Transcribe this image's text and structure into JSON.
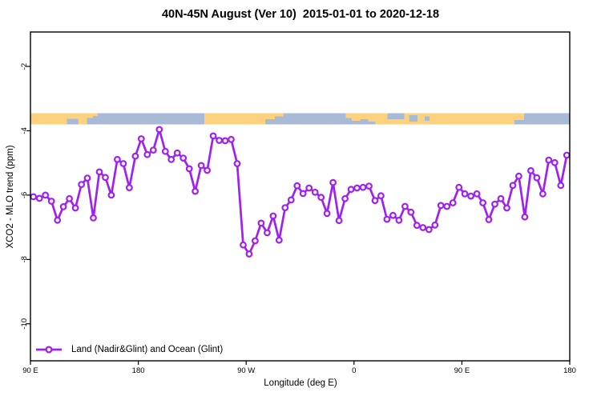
{
  "title": "40N-45N August (Ver 10)  2015-01-01 to 2020-12-18",
  "legend": {
    "label": "Land (Nadir&Glint) and Ocean (Glint)"
  },
  "colors": {
    "series": "#A020F0",
    "land": "#FCD27F",
    "ocean": "#A9BAD7",
    "axis": "#000000"
  },
  "chart_data": {
    "type": "line",
    "title": "40N-45N August (Ver 10)  2015-01-01 to 2020-12-18",
    "xlabel": "Longitude (deg E)",
    "ylabel": "XCO2 - MLO trend (ppm)",
    "xlim": [
      90,
      540
    ],
    "ylim": [
      -11.15,
      -0.93
    ],
    "grid": false,
    "legend_position": "bottom-left",
    "x_ticks": [
      {
        "value": 90,
        "label": "90 E"
      },
      {
        "value": 180,
        "label": "180"
      },
      {
        "value": 270,
        "label": "90 W"
      },
      {
        "value": 360,
        "label": "0"
      },
      {
        "value": 450,
        "label": "90 E"
      },
      {
        "value": 540,
        "label": "180"
      }
    ],
    "y_ticks": [
      {
        "value": -2,
        "label": "-2"
      },
      {
        "value": -4,
        "label": "-4"
      },
      {
        "value": -6,
        "label": "-6"
      },
      {
        "value": -8,
        "label": "-8"
      },
      {
        "value": -10,
        "label": "-10"
      }
    ],
    "series": [
      {
        "name": "Land (Nadir&Glint) and Ocean (Glint)",
        "color": "#A020F0",
        "marker": "open-circle",
        "points": [
          [
            92.5,
            -6.05
          ],
          [
            97.5,
            -6.1
          ],
          [
            102.5,
            -6.0
          ],
          [
            107.5,
            -6.19
          ],
          [
            112.5,
            -6.78
          ],
          [
            117.5,
            -6.36
          ],
          [
            122.5,
            -6.11
          ],
          [
            127.5,
            -6.4
          ],
          [
            132.5,
            -5.67
          ],
          [
            137.5,
            -5.47
          ],
          [
            142.5,
            -6.71
          ],
          [
            147.5,
            -5.28
          ],
          [
            152.5,
            -5.45
          ],
          [
            157.5,
            -6.0
          ],
          [
            162.5,
            -4.89
          ],
          [
            167.5,
            -5.02
          ],
          [
            172.5,
            -5.77
          ],
          [
            177.5,
            -4.79
          ],
          [
            182.5,
            -4.25
          ],
          [
            187.5,
            -4.74
          ],
          [
            192.5,
            -4.6
          ],
          [
            197.5,
            -3.96
          ],
          [
            202.5,
            -4.64
          ],
          [
            207.5,
            -4.89
          ],
          [
            212.5,
            -4.69
          ],
          [
            217.5,
            -4.85
          ],
          [
            222.5,
            -5.18
          ],
          [
            227.5,
            -5.88
          ],
          [
            232.5,
            -5.08
          ],
          [
            237.5,
            -5.23
          ],
          [
            242.5,
            -4.16
          ],
          [
            247.5,
            -4.3
          ],
          [
            252.5,
            -4.31
          ],
          [
            257.5,
            -4.27
          ],
          [
            262.5,
            -5.02
          ],
          [
            267.5,
            -7.55
          ],
          [
            272.5,
            -7.83
          ],
          [
            277.5,
            -7.42
          ],
          [
            282.5,
            -6.87
          ],
          [
            287.5,
            -7.17
          ],
          [
            292.5,
            -6.65
          ],
          [
            297.5,
            -7.4
          ],
          [
            302.5,
            -6.39
          ],
          [
            307.5,
            -6.15
          ],
          [
            312.5,
            -5.71
          ],
          [
            317.5,
            -5.95
          ],
          [
            322.5,
            -5.78
          ],
          [
            327.5,
            -5.91
          ],
          [
            332.5,
            -6.07
          ],
          [
            337.5,
            -6.57
          ],
          [
            342.5,
            -5.61
          ],
          [
            347.5,
            -6.79
          ],
          [
            352.5,
            -6.11
          ],
          [
            357.5,
            -5.82
          ],
          [
            362.5,
            -5.78
          ],
          [
            367.5,
            -5.76
          ],
          [
            372.5,
            -5.72
          ],
          [
            377.5,
            -6.17
          ],
          [
            382.5,
            -6.02
          ],
          [
            387.5,
            -6.75
          ],
          [
            392.5,
            -6.63
          ],
          [
            397.5,
            -6.78
          ],
          [
            402.5,
            -6.35
          ],
          [
            407.5,
            -6.53
          ],
          [
            412.5,
            -6.94
          ],
          [
            417.5,
            -7.01
          ],
          [
            422.5,
            -7.07
          ],
          [
            427.5,
            -6.93
          ],
          [
            432.5,
            -6.32
          ],
          [
            437.5,
            -6.35
          ],
          [
            442.5,
            -6.24
          ],
          [
            447.5,
            -5.76
          ],
          [
            452.5,
            -5.96
          ],
          [
            457.5,
            -6.03
          ],
          [
            462.5,
            -5.96
          ],
          [
            467.5,
            -6.24
          ],
          [
            472.5,
            -6.76
          ],
          [
            477.5,
            -6.28
          ],
          [
            482.5,
            -6.11
          ],
          [
            487.5,
            -6.4
          ],
          [
            492.5,
            -5.7
          ],
          [
            497.5,
            -5.41
          ],
          [
            502.5,
            -6.68
          ],
          [
            507.5,
            -5.24
          ],
          [
            512.5,
            -5.46
          ],
          [
            517.5,
            -5.96
          ],
          [
            522.5,
            -4.91
          ],
          [
            527.5,
            -4.99
          ],
          [
            532.5,
            -5.7
          ],
          [
            537.5,
            -4.76
          ]
        ]
      }
    ],
    "land_ocean_band": {
      "description": "land/ocean mask strip along 40N-45N; top of strip = 45N, bottom = 40N",
      "y_range": [
        -3.45,
        -3.8
      ],
      "land_color": "#FCD27F",
      "ocean_color": "#A9BAD7",
      "segments": [
        {
          "from": 90,
          "to": 120.5,
          "layers": [
            {
              "c": "land",
              "f": 1
            }
          ]
        },
        {
          "from": 120.5,
          "to": 130,
          "layers": [
            {
              "c": "land",
              "f": 0.5
            },
            {
              "c": "ocean",
              "f": 0.5
            }
          ]
        },
        {
          "from": 130,
          "to": 137,
          "layers": [
            {
              "c": "land",
              "f": 1
            }
          ]
        },
        {
          "from": 137,
          "to": 142,
          "layers": [
            {
              "c": "land",
              "f": 0.45
            },
            {
              "c": "ocean",
              "f": 0.55
            }
          ]
        },
        {
          "from": 142,
          "to": 146,
          "layers": [
            {
              "c": "land",
              "f": 0.25
            },
            {
              "c": "ocean",
              "f": 0.75
            }
          ]
        },
        {
          "from": 146,
          "to": 235,
          "layers": [
            {
              "c": "ocean",
              "f": 1
            }
          ]
        },
        {
          "from": 235,
          "to": 286,
          "layers": [
            {
              "c": "land",
              "f": 1
            }
          ]
        },
        {
          "from": 286,
          "to": 294,
          "layers": [
            {
              "c": "land",
              "f": 0.55
            },
            {
              "c": "ocean",
              "f": 0.45
            }
          ]
        },
        {
          "from": 294,
          "to": 301,
          "layers": [
            {
              "c": "land",
              "f": 0.3
            },
            {
              "c": "ocean",
              "f": 0.7
            }
          ]
        },
        {
          "from": 301,
          "to": 353,
          "layers": [
            {
              "c": "ocean",
              "f": 1
            }
          ]
        },
        {
          "from": 353,
          "to": 358,
          "layers": [
            {
              "c": "land",
              "f": 0.45
            },
            {
              "c": "ocean",
              "f": 0.55
            }
          ]
        },
        {
          "from": 358,
          "to": 365,
          "layers": [
            {
              "c": "land",
              "f": 0.7
            },
            {
              "c": "ocean",
              "f": 0.3
            }
          ]
        },
        {
          "from": 365,
          "to": 372,
          "layers": [
            {
              "c": "land",
              "f": 0.55
            },
            {
              "c": "ocean",
              "f": 0.45
            }
          ]
        },
        {
          "from": 372,
          "to": 378,
          "layers": [
            {
              "c": "land",
              "f": 0.75
            },
            {
              "c": "ocean",
              "f": 0.25
            }
          ]
        },
        {
          "from": 378,
          "to": 388,
          "layers": [
            {
              "c": "land",
              "f": 1
            }
          ]
        },
        {
          "from": 388,
          "to": 402,
          "layers": [
            {
              "c": "ocean",
              "f": 0.55
            },
            {
              "c": "land",
              "f": 0.45
            }
          ]
        },
        {
          "from": 402,
          "to": 406,
          "layers": [
            {
              "c": "land",
              "f": 1
            }
          ]
        },
        {
          "from": 406,
          "to": 413,
          "layers": [
            {
              "c": "land",
              "f": 0.2
            },
            {
              "c": "ocean",
              "f": 0.55
            },
            {
              "c": "land",
              "f": 0.25
            }
          ]
        },
        {
          "from": 413,
          "to": 419,
          "layers": [
            {
              "c": "land",
              "f": 1
            }
          ]
        },
        {
          "from": 419,
          "to": 423,
          "layers": [
            {
              "c": "land",
              "f": 0.3
            },
            {
              "c": "ocean",
              "f": 0.4
            },
            {
              "c": "land",
              "f": 0.3
            }
          ]
        },
        {
          "from": 423,
          "to": 494,
          "layers": [
            {
              "c": "land",
              "f": 1
            }
          ]
        },
        {
          "from": 494,
          "to": 502,
          "layers": [
            {
              "c": "land",
              "f": 0.6
            },
            {
              "c": "ocean",
              "f": 0.4
            }
          ]
        },
        {
          "from": 502,
          "to": 540,
          "layers": [
            {
              "c": "ocean",
              "f": 1
            }
          ]
        }
      ]
    }
  }
}
